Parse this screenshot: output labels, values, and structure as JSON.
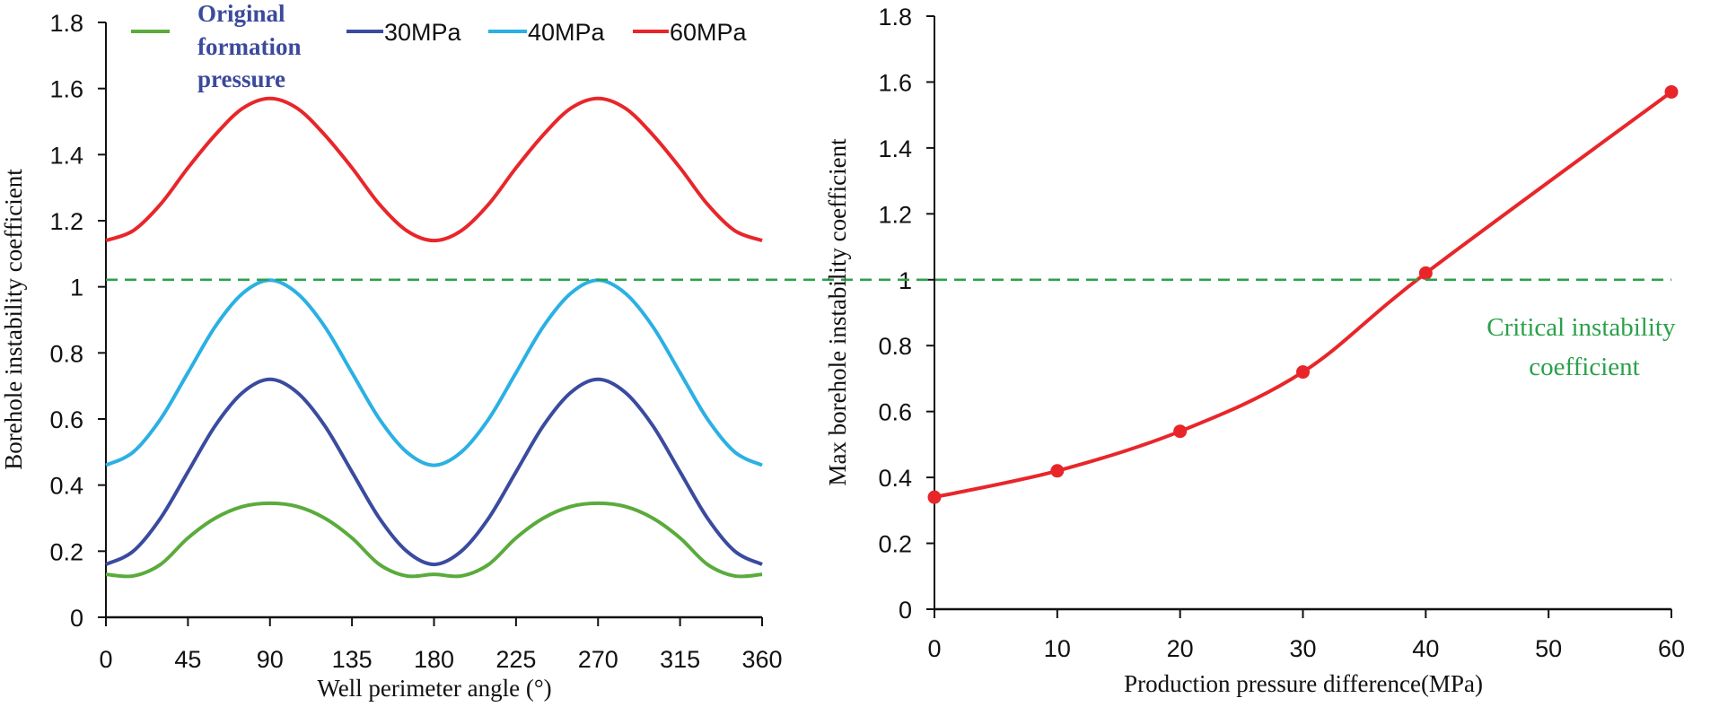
{
  "chart_data": [
    {
      "type": "line",
      "xlabel": "Well perimeter angle (°)",
      "ylabel": "Borehole instability coefficient",
      "xlim": [
        0,
        360
      ],
      "ylim": [
        0,
        1.8
      ],
      "xticks": [
        "0",
        "45",
        "90",
        "135",
        "180",
        "225",
        "270",
        "315",
        "360"
      ],
      "yticks": [
        "0",
        "0.2",
        "0.4",
        "0.6",
        "0.8",
        "1",
        "1.2",
        "1.4",
        "1.6",
        "1.8"
      ],
      "grid": false,
      "legend_position": "top",
      "x": [
        0,
        15,
        30,
        45,
        60,
        75,
        90,
        105,
        120,
        135,
        150,
        165,
        180,
        195,
        210,
        225,
        240,
        255,
        270,
        285,
        300,
        315,
        330,
        345,
        360
      ],
      "series": [
        {
          "name": "Original formation pressure",
          "color": "#5aab3c",
          "values": [
            0.13,
            0.125,
            0.16,
            0.24,
            0.3,
            0.335,
            0.345,
            0.335,
            0.3,
            0.24,
            0.16,
            0.125,
            0.13,
            0.125,
            0.16,
            0.24,
            0.3,
            0.335,
            0.345,
            0.335,
            0.3,
            0.24,
            0.16,
            0.125,
            0.13
          ]
        },
        {
          "name": "30MPa",
          "color": "#3a4b9f",
          "values": [
            0.16,
            0.2,
            0.3,
            0.44,
            0.58,
            0.68,
            0.72,
            0.68,
            0.58,
            0.44,
            0.3,
            0.2,
            0.16,
            0.2,
            0.3,
            0.44,
            0.58,
            0.68,
            0.72,
            0.68,
            0.58,
            0.44,
            0.3,
            0.2,
            0.16
          ]
        },
        {
          "name": "40MPa",
          "color": "#2bb0e4",
          "values": [
            0.46,
            0.5,
            0.6,
            0.74,
            0.88,
            0.98,
            1.02,
            0.98,
            0.88,
            0.74,
            0.6,
            0.5,
            0.46,
            0.5,
            0.6,
            0.74,
            0.88,
            0.98,
            1.02,
            0.98,
            0.88,
            0.74,
            0.6,
            0.5,
            0.46
          ]
        },
        {
          "name": "60MPa",
          "color": "#e8262a",
          "values": [
            1.14,
            1.17,
            1.25,
            1.36,
            1.46,
            1.54,
            1.57,
            1.54,
            1.46,
            1.36,
            1.25,
            1.17,
            1.14,
            1.17,
            1.25,
            1.36,
            1.46,
            1.54,
            1.57,
            1.54,
            1.46,
            1.36,
            1.25,
            1.17,
            1.14
          ]
        }
      ],
      "reference_line": {
        "y": 1,
        "style": "dashed",
        "color": "#2aa14a"
      }
    },
    {
      "type": "line",
      "xlabel": "Production pressure difference(MPa)",
      "ylabel": "Max borehole instability coefficient",
      "xlim": [
        0,
        60
      ],
      "ylim": [
        0,
        1.8
      ],
      "xticks": [
        "0",
        "10",
        "20",
        "30",
        "40",
        "50",
        "60"
      ],
      "yticks": [
        "0",
        "0.2",
        "0.4",
        "0.6",
        "0.8",
        "1",
        "1.2",
        "1.4",
        "1.6",
        "1.8"
      ],
      "grid": false,
      "markers": true,
      "series": [
        {
          "color": "#e8262a",
          "x": [
            0,
            10,
            20,
            30,
            40,
            60
          ],
          "values": [
            0.34,
            0.42,
            0.54,
            0.72,
            1.02,
            1.57
          ]
        }
      ],
      "reference_line": {
        "y": 1,
        "style": "dashed",
        "color": "#2aa14a",
        "label": [
          "Critical instability",
          "coefficient"
        ]
      }
    }
  ]
}
